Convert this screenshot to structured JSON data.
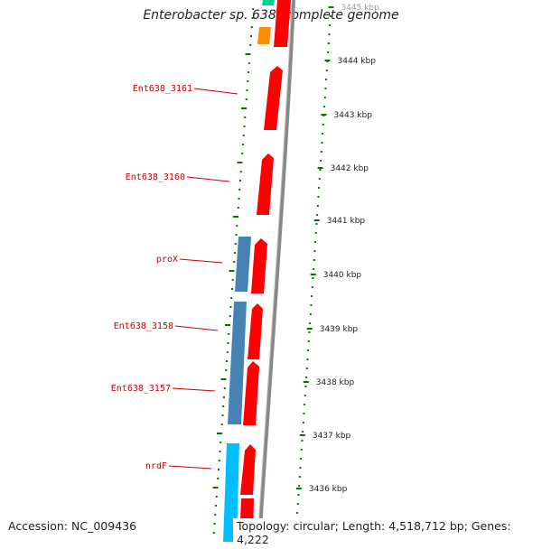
{
  "title": "Enterobacter sp. 638, complete genome",
  "accession": "Accession: NC_009436",
  "summary": "Topology: circular; Length: 4,518,712 bp; Genes: 4,222",
  "colors": {
    "forward_gene": "#ff0000",
    "reverse_gene_a": "#4682b4",
    "reverse_gene_b": "#00bfff",
    "orange_gene": "#ff8c00",
    "green_gene": "#00d28c",
    "backbone": "#808080",
    "ticks": "#007700",
    "gene_label": "#cc0000"
  },
  "gene_labels": [
    "Ent638_3161",
    "Ent638_3160",
    "proX",
    "Ent638_3158",
    "Ent638_3157",
    "nrdF"
  ],
  "kbp_labels": [
    "3445 kbp",
    "3444 kbp",
    "3443 kbp",
    "3442 kbp",
    "3441 kbp",
    "3440 kbp",
    "3439 kbp",
    "3438 kbp",
    "3437 kbp",
    "3436 kbp"
  ]
}
